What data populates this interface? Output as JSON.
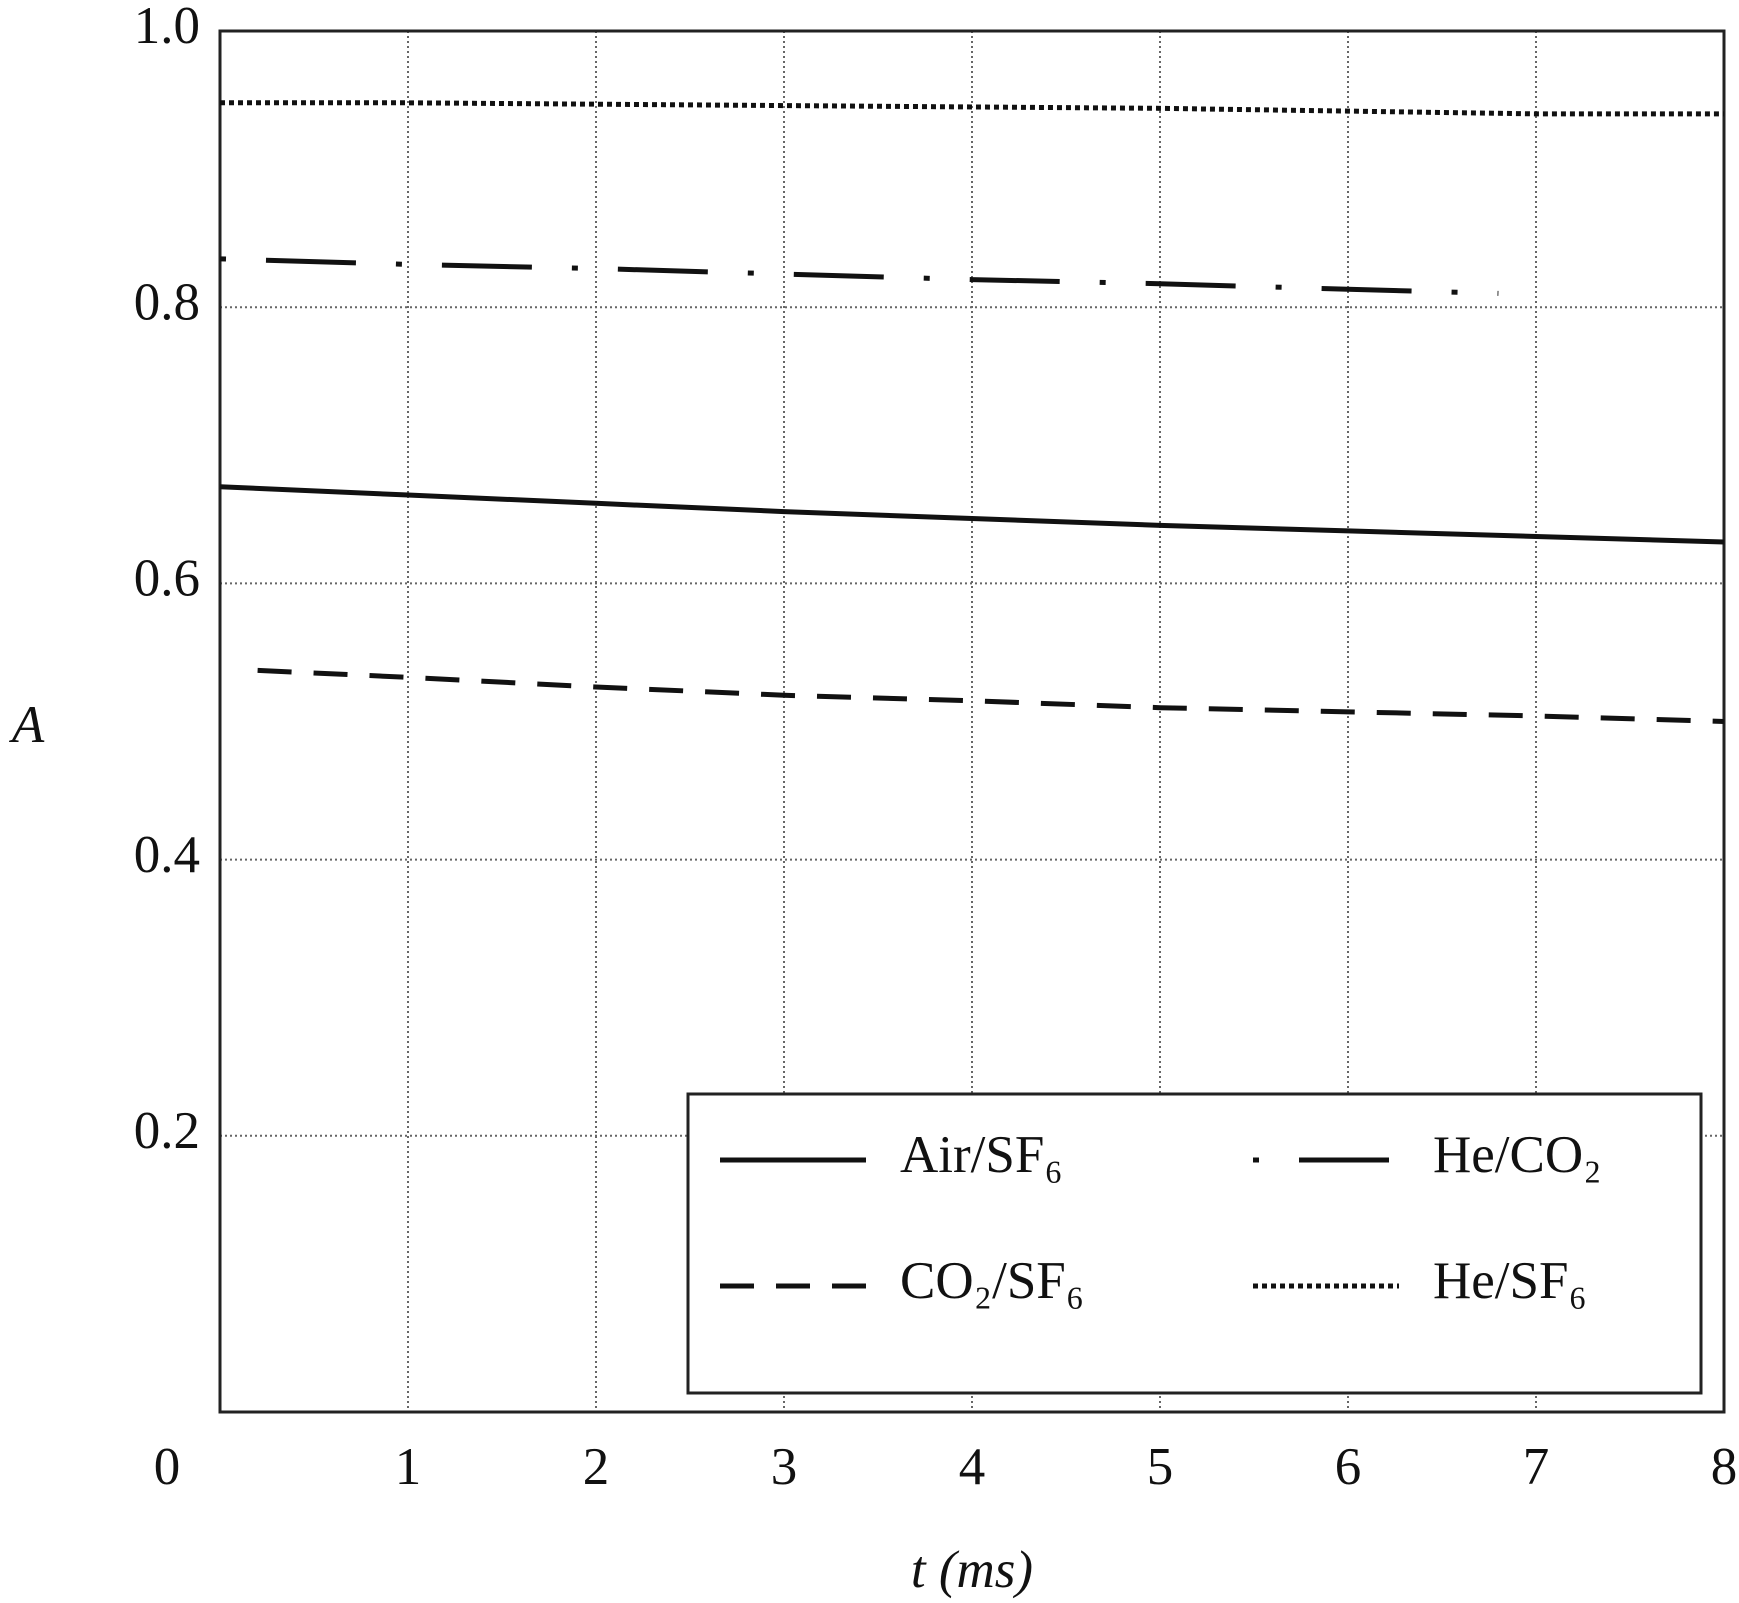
{
  "chart_data": {
    "type": "line",
    "xlabel": "t (ms)",
    "ylabel": "A",
    "xlim": [
      0,
      8
    ],
    "ylim": [
      0,
      1
    ],
    "xticks": [
      0,
      1,
      2,
      3,
      4,
      5,
      6,
      7,
      8
    ],
    "yticks": [
      0.2,
      0.4,
      0.6,
      0.8,
      {
        "value": 1,
        "label": "1.0"
      }
    ],
    "grid": true,
    "legend": "lower right",
    "series": [
      {
        "name": "Air/SF₆",
        "color": "#111111",
        "linestyle": "solid",
        "x": [
          0,
          1,
          2,
          3,
          4,
          5,
          6,
          7,
          8
        ],
        "values": [
          0.67,
          0.664,
          0.658,
          0.652,
          0.647,
          0.642,
          0.638,
          0.634,
          0.63
        ]
      },
      {
        "name": "CO₂/SF₆",
        "color": "#111111",
        "linestyle": "dashed",
        "x": [
          0.2,
          1,
          2,
          3,
          4,
          5,
          6,
          7,
          8
        ],
        "values": [
          0.537,
          0.532,
          0.525,
          0.519,
          0.515,
          0.51,
          0.507,
          0.504,
          0.5
        ]
      },
      {
        "name": "He/CO₂",
        "color": "#111111",
        "linestyle": "dashdot",
        "x": [
          0,
          1,
          2,
          3,
          4,
          5,
          6,
          6.8
        ],
        "values": [
          0.835,
          0.831,
          0.828,
          0.824,
          0.82,
          0.817,
          0.813,
          0.81
        ]
      },
      {
        "name": "He/SF₆",
        "color": "#111111",
        "linestyle": "dotted",
        "x": [
          0,
          1,
          2,
          3,
          4,
          5,
          6,
          7,
          8
        ],
        "values": [
          0.948,
          0.948,
          0.947,
          0.946,
          0.945,
          0.944,
          0.942,
          0.94,
          0.94
        ]
      }
    ]
  }
}
